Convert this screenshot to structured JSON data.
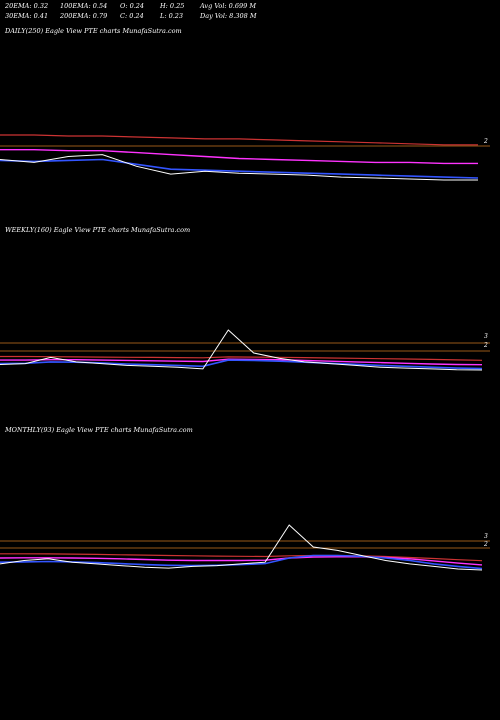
{
  "header": {
    "row1": [
      "20EMA: 0.32",
      "100EMA: 0.54",
      "O: 0.24",
      "H: 0.25",
      "Avg Vol: 0.699 M"
    ],
    "row2": [
      "30EMA: 0.41",
      "200EMA: 0.79",
      "C: 0.24",
      "L: 0.23",
      "Day Vol: 8.308 M"
    ]
  },
  "chart_data": [
    {
      "type": "line",
      "title": "DAILY(250) Eagle   View  PTE charts MunafaSutra.com",
      "level_labels": [
        "2"
      ],
      "colors": {
        "price": "#ffffff",
        "ema_short": "#3355ff",
        "ema_mid": "#ff33ff",
        "ema_long": "#cc3333",
        "levels": "#cc7722"
      },
      "series": [
        {
          "role": "price",
          "values": [
            0.45,
            0.42,
            0.48,
            0.5,
            0.38,
            0.3,
            0.33,
            0.31,
            0.3,
            0.29,
            0.27,
            0.26,
            0.25,
            0.24,
            0.24
          ]
        },
        {
          "role": "ema_short",
          "values": [
            0.44,
            0.43,
            0.44,
            0.45,
            0.4,
            0.35,
            0.34,
            0.33,
            0.32,
            0.31,
            0.3,
            0.29,
            0.28,
            0.27,
            0.26
          ]
        },
        {
          "role": "ema_mid",
          "values": [
            0.55,
            0.55,
            0.54,
            0.54,
            0.52,
            0.5,
            0.48,
            0.46,
            0.45,
            0.44,
            0.43,
            0.42,
            0.42,
            0.41,
            0.41
          ]
        },
        {
          "role": "ema_long",
          "values": [
            0.7,
            0.7,
            0.69,
            0.69,
            0.68,
            0.67,
            0.66,
            0.66,
            0.65,
            0.64,
            0.63,
            0.62,
            0.61,
            0.6,
            0.6
          ]
        }
      ]
    },
    {
      "type": "line",
      "title": "WEEKLY(160) Eagle   View  PTE charts MunafaSutra.com",
      "level_labels": [
        "3",
        "2"
      ],
      "colors": {
        "price": "#ffffff",
        "ema_short": "#3355ff",
        "ema_mid": "#ff33ff",
        "ema_long": "#cc3333",
        "levels": "#cc7722"
      },
      "series": [
        {
          "role": "price",
          "values": [
            0.55,
            0.6,
            0.95,
            0.7,
            0.6,
            0.5,
            0.45,
            0.4,
            0.3,
            2.5,
            1.2,
            0.9,
            0.7,
            0.6,
            0.5,
            0.4,
            0.35,
            0.3,
            0.25,
            0.24
          ]
        },
        {
          "role": "ema_short",
          "values": [
            0.6,
            0.62,
            0.7,
            0.68,
            0.64,
            0.58,
            0.54,
            0.5,
            0.45,
            0.8,
            0.78,
            0.74,
            0.68,
            0.62,
            0.56,
            0.5,
            0.45,
            0.4,
            0.35,
            0.32
          ]
        },
        {
          "role": "ema_mid",
          "values": [
            0.8,
            0.8,
            0.82,
            0.82,
            0.8,
            0.78,
            0.76,
            0.74,
            0.72,
            0.85,
            0.84,
            0.82,
            0.78,
            0.74,
            0.7,
            0.66,
            0.62,
            0.58,
            0.55,
            0.54
          ]
        },
        {
          "role": "ema_long",
          "values": [
            1.0,
            1.0,
            0.99,
            0.98,
            0.97,
            0.96,
            0.95,
            0.94,
            0.93,
            0.98,
            0.97,
            0.96,
            0.94,
            0.92,
            0.9,
            0.88,
            0.86,
            0.84,
            0.81,
            0.79
          ]
        }
      ]
    },
    {
      "type": "line",
      "title": "MONTHLY(93) Eagle   View  PTE charts MunafaSutra.com",
      "level_labels": [
        "3",
        "2"
      ],
      "colors": {
        "price": "#ffffff",
        "ema_short": "#3355ff",
        "ema_mid": "#ff33ff",
        "ema_long": "#cc3333",
        "levels": "#cc7722"
      },
      "series": [
        {
          "role": "price",
          "values": [
            0.6,
            0.8,
            0.9,
            0.7,
            0.6,
            0.5,
            0.4,
            0.35,
            0.45,
            0.5,
            0.6,
            0.7,
            2.9,
            1.6,
            1.4,
            1.1,
            0.8,
            0.6,
            0.45,
            0.3,
            0.24
          ]
        },
        {
          "role": "ema_short",
          "values": [
            0.7,
            0.72,
            0.74,
            0.72,
            0.68,
            0.62,
            0.56,
            0.52,
            0.5,
            0.52,
            0.56,
            0.62,
            0.95,
            1.1,
            1.1,
            1.05,
            0.95,
            0.8,
            0.6,
            0.45,
            0.32
          ]
        },
        {
          "role": "ema_mid",
          "values": [
            0.95,
            0.96,
            0.96,
            0.95,
            0.93,
            0.9,
            0.86,
            0.82,
            0.8,
            0.8,
            0.8,
            0.82,
            0.95,
            1.0,
            1.02,
            1.02,
            0.98,
            0.9,
            0.78,
            0.65,
            0.54
          ]
        },
        {
          "role": "ema_long",
          "values": [
            1.2,
            1.2,
            1.19,
            1.18,
            1.16,
            1.14,
            1.12,
            1.1,
            1.08,
            1.06,
            1.05,
            1.04,
            1.08,
            1.1,
            1.1,
            1.08,
            1.04,
            0.98,
            0.92,
            0.85,
            0.79
          ]
        }
      ]
    }
  ]
}
